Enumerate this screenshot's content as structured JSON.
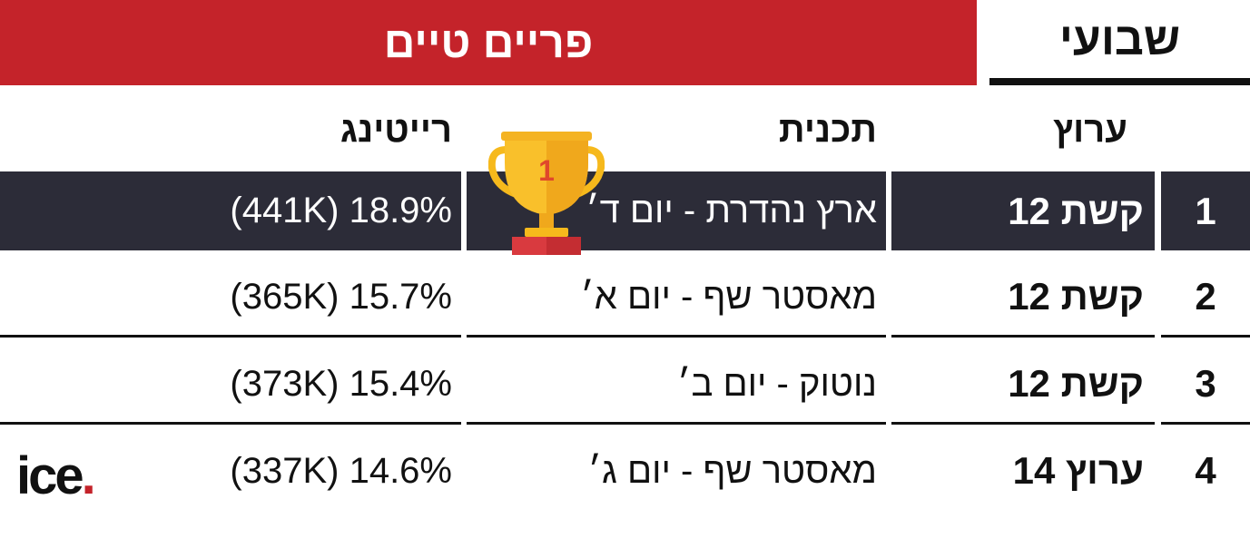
{
  "header": {
    "title": "פריים טיים",
    "period": "שבועי"
  },
  "columns": {
    "channel": "ערוץ",
    "program": "תכנית",
    "rating": "רייטינג"
  },
  "rows": [
    {
      "rank": "1",
      "channel": "קשת 12",
      "program": "ארץ נהדרת - יום ד׳",
      "rating": "(441K) 18.9%"
    },
    {
      "rank": "2",
      "channel": "קשת 12",
      "program": "מאסטר שף - יום א׳",
      "rating": "(365K) 15.7%"
    },
    {
      "rank": "3",
      "channel": "קשת 12",
      "program": "נוטוק - יום ב׳",
      "rating": "(373K) 15.4%"
    },
    {
      "rank": "4",
      "channel": "ערוץ 14",
      "program": "מאסטר שף - יום ג׳",
      "rating": "(337K) 14.6%"
    }
  ],
  "trophy": {
    "label": "1",
    "icon": "trophy-icon"
  },
  "logo": {
    "text": "ice",
    "dot": "."
  },
  "colors": {
    "red": "#c4232a",
    "dark_row": "#2c2c38",
    "gold": "#f6b91c"
  }
}
